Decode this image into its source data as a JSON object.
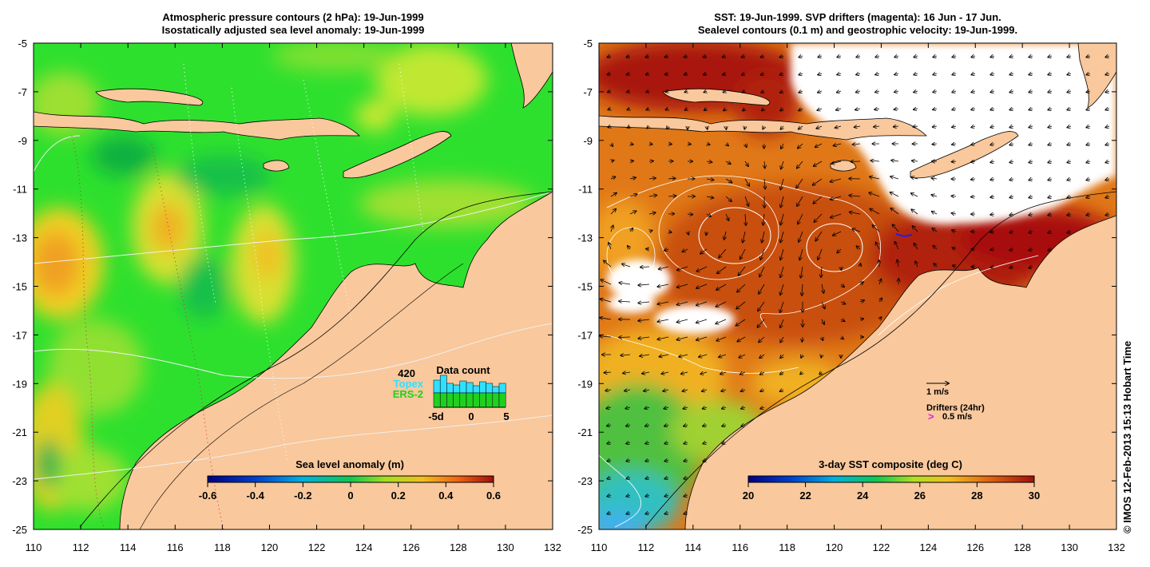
{
  "left_panel": {
    "title_line1": "Atmospheric pressure contours (2 hPa): 19-Jun-1999",
    "title_line2": "Isostatically adjusted sea level anomaly: 19-Jun-1999",
    "colorbar_title": "Sea level anomaly (m)",
    "colorbar_ticks": [
      "-0.6",
      "-0.4",
      "-0.2",
      "0",
      "0.2",
      "0.4",
      "0.6"
    ],
    "data_count": {
      "title": "Data count",
      "total": "420",
      "topex_label": "Topex",
      "ers2_label": "ERS-2",
      "x_ticks": [
        "-5d",
        "0",
        "5"
      ],
      "topex_color": "#30e0ff",
      "ers2_color": "#20d020"
    }
  },
  "right_panel": {
    "title_line1": "SST: 19-Jun-1999. SVP drifters (magenta): 16 Jun - 17 Jun.",
    "title_line2": "Sealevel contours (0.1 m) and geostrophic velocity: 19-Jun-1999.",
    "colorbar_title": "3-day SST composite (deg C)",
    "colorbar_ticks": [
      "20",
      "22",
      "24",
      "26",
      "28",
      "30"
    ],
    "velocity_legend_label": "1 m/s",
    "drifters_label": "Drifters (24hr)",
    "drifter_speed_label": "0.5 m/s",
    "drifter_color": "#e020e0"
  },
  "axes": {
    "lon_ticks": [
      "110",
      "112",
      "114",
      "116",
      "118",
      "120",
      "122",
      "124",
      "126",
      "128",
      "130",
      "132"
    ],
    "lat_ticks": [
      "-5",
      "-7",
      "-9",
      "-11",
      "-13",
      "-15",
      "-17",
      "-19",
      "-21",
      "-23",
      "-25"
    ],
    "lon_range": [
      110,
      132
    ],
    "lat_range": [
      -25,
      -5
    ]
  },
  "colors": {
    "land": "#f9c89c",
    "sla_ocean": "#2ee02e",
    "sst_ocean": "#e07818",
    "sst_warm": "#b01808",
    "cloud": "#ffffff"
  },
  "copyright": "© IMOS 12-Feb-2013 15:13 Hobart Time"
}
